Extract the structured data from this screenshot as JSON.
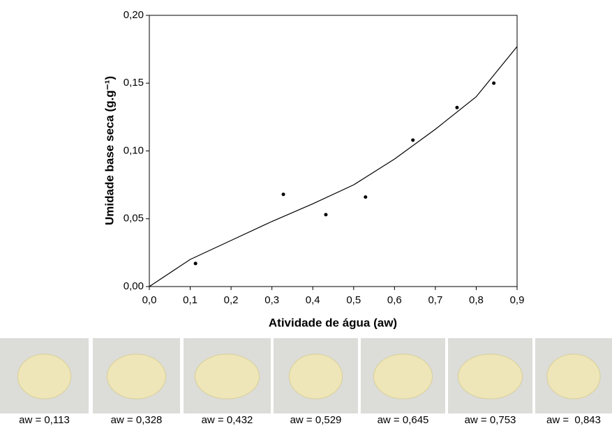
{
  "chart_data": {
    "type": "scatter",
    "x_label": "Atividade de água (aw)",
    "y_label": "Umidade base seca (g.g⁻¹)",
    "xlim": [
      0,
      0.9
    ],
    "ylim": [
      0,
      0.2
    ],
    "xticks": [
      {
        "value": 0,
        "label": "0,0"
      },
      {
        "value": 0.1,
        "label": "0,1"
      },
      {
        "value": 0.2,
        "label": "0,2"
      },
      {
        "value": 0.3,
        "label": "0,3"
      },
      {
        "value": 0.4,
        "label": "0,4"
      },
      {
        "value": 0.5,
        "label": "0,5"
      },
      {
        "value": 0.6,
        "label": "0,6"
      },
      {
        "value": 0.7,
        "label": "0,7"
      },
      {
        "value": 0.8,
        "label": "0,8"
      },
      {
        "value": 0.9,
        "label": "0,9"
      }
    ],
    "yticks": [
      {
        "value": 0,
        "label": "0,00"
      },
      {
        "value": 0.05,
        "label": "0,05"
      },
      {
        "value": 0.1,
        "label": "0,10"
      },
      {
        "value": 0.15,
        "label": "0,15"
      },
      {
        "value": 0.2,
        "label": "0,20"
      }
    ],
    "series": [
      {
        "type": "scatter",
        "color": "#000000",
        "x": [
          0.113,
          0.328,
          0.432,
          0.529,
          0.645,
          0.753,
          0.843
        ],
        "values": [
          0.017,
          0.068,
          0.053,
          0.066,
          0.108,
          0.132,
          0.15
        ]
      },
      {
        "type": "line",
        "color": "#000000",
        "x": [
          0,
          0.1,
          0.2,
          0.3,
          0.4,
          0.5,
          0.6,
          0.7,
          0.8,
          0.9
        ],
        "values": [
          0,
          0.02,
          0.034,
          0.048,
          0.061,
          0.075,
          0.094,
          0.116,
          0.14,
          0.177
        ]
      }
    ]
  },
  "photos": {
    "captions": [
      "aw = 0,113",
      "aw = 0,328",
      "aw = 0,432",
      "aw = 0,529",
      "aw = 0,645",
      "aw = 0,753",
      "aw =  0,843"
    ]
  }
}
